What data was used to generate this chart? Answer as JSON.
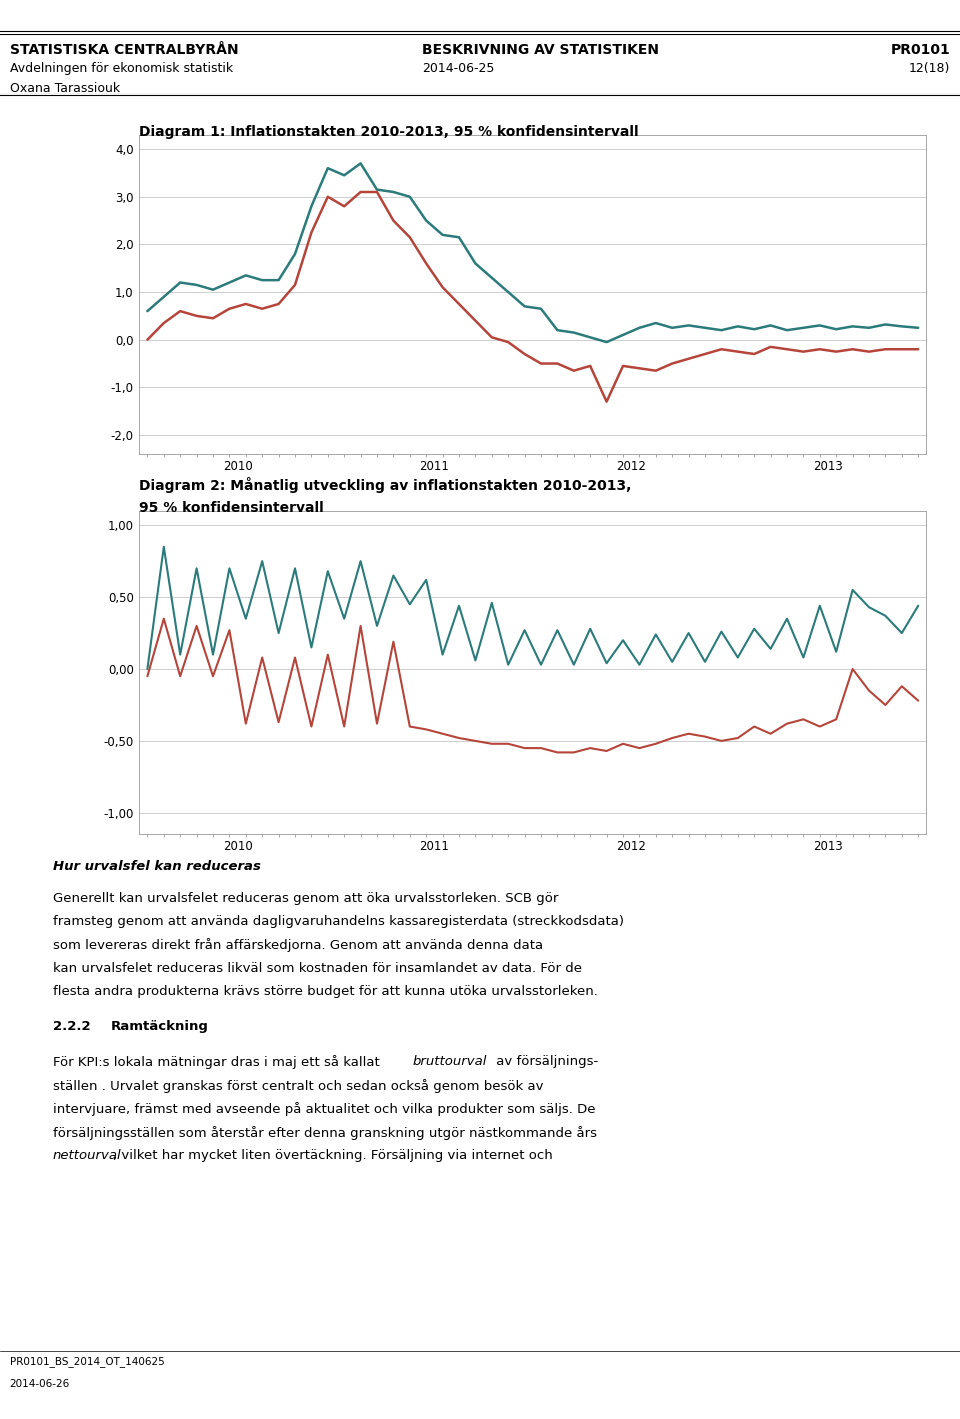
{
  "header_left_line1": "STATISTISKA CENTRALBYRÅN",
  "header_left_line2": "Avdelningen för ekonomisk statistik",
  "header_left_line3": "Oxana Tarassiouk",
  "header_center_line1": "BESKRIVNING AV STATISTIKEN",
  "header_center_line2": "2014-06-25",
  "header_right_line1": "PR0101",
  "header_right_line2": "12(18)",
  "footer_left": "PR0101_BS_2014_OT_140625",
  "footer_date": "2014-06-26",
  "diag1_title": "Diagram 1: Inflationstakten 2010-2013, 95 % konfidensintervall",
  "diag1_yticks": [
    -2.0,
    -1.0,
    0.0,
    1.0,
    2.0,
    3.0,
    4.0
  ],
  "diag1_ylim": [
    -2.4,
    4.3
  ],
  "diag1_xtick_labels": [
    "2010",
    "2011",
    "2012",
    "2013"
  ],
  "diag1_color_teal": "#2B7B7B",
  "diag1_color_red": "#B5453A",
  "diag2_title_line1": "Diagram 2: Månatlig utveckling av inflationstakten 2010-2013,",
  "diag2_title_line2": "95 % konfidensintervall",
  "diag2_yticks": [
    -1.0,
    -0.5,
    0.0,
    0.5,
    1.0
  ],
  "diag2_ylim": [
    -1.15,
    1.1
  ],
  "diag2_xtick_labels": [
    "2010",
    "2011",
    "2012",
    "2013"
  ],
  "diag2_color_teal": "#2B7B7B",
  "diag2_color_red": "#B5453A",
  "background_color": "#FFFFFF",
  "grid_color": "#BBBBBB",
  "box_color": "#999999"
}
